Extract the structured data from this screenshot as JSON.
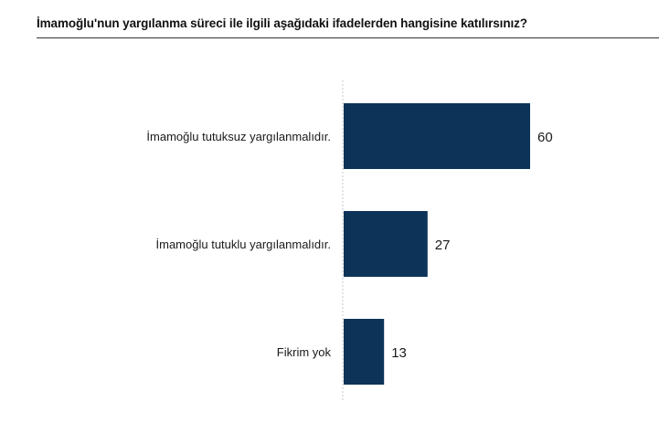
{
  "chart_data": {
    "type": "bar",
    "orientation": "horizontal",
    "title": "İmamoğlu'nun yargılanma süreci ile ilgili aşağıdaki ifadelerden hangisine katılırsınız?",
    "categories": [
      "İmamoğlu tutuksuz yargılanmalıdır.",
      "İmamoğlu tutuklu yargılanmalıdır.",
      "Fikrim yok"
    ],
    "values": [
      60,
      27,
      13
    ],
    "value_labels": [
      "60",
      "27",
      "13"
    ],
    "xlim": [
      0,
      60
    ],
    "bar_color": "#0d3458",
    "axis_color": "#d8d8d8",
    "grid": false,
    "legend": "none"
  }
}
